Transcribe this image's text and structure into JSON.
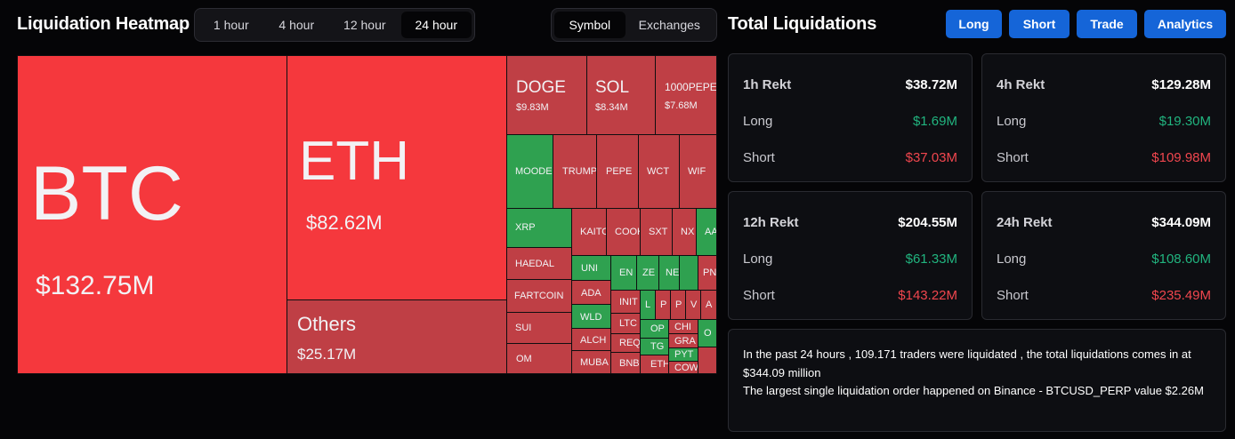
{
  "header": {
    "title": "Liquidation Heatmap",
    "time_tabs": [
      "1 hour",
      "4 hour",
      "12 hour",
      "24 hour"
    ],
    "active_time_tab": "24 hour",
    "view_tabs": [
      "Symbol",
      "Exchanges"
    ],
    "active_view_tab": "Symbol"
  },
  "right_header": {
    "title": "Total Liquidations",
    "buttons": [
      "Long",
      "Short",
      "Trade",
      "Analytics"
    ]
  },
  "heatmap": {
    "btc": {
      "symbol": "BTC",
      "value": "$132.75M"
    },
    "eth": {
      "symbol": "ETH",
      "value": "$82.62M"
    },
    "others": {
      "symbol": "Others",
      "value": "$25.17M"
    },
    "doge": {
      "symbol": "DOGE",
      "value": "$9.83M"
    },
    "sol": {
      "symbol": "SOL",
      "value": "$8.34M"
    },
    "pepe1000": {
      "symbol": "1000PEPE",
      "value": "$7.68M"
    },
    "small": [
      "MOODE",
      "TRUMP",
      "PEPE",
      "WCT",
      "WIF",
      "XRP",
      "KAITO",
      "COOK",
      "SXT",
      "NX",
      "AA",
      "HAEDAL",
      "UNI",
      "EN",
      "ZE",
      "NE",
      "PN",
      "FARTCOIN",
      "ADA",
      "INIT",
      "L",
      "P",
      "P",
      "V",
      "A",
      "SUI",
      "WLD",
      "LTC",
      "OP",
      "CHI",
      "O",
      "ALCH",
      "REQ",
      "TG",
      "GRA",
      "OM",
      "MUBA",
      "BNB",
      "ETH",
      "PYT",
      "COW"
    ]
  },
  "stats": {
    "h1": {
      "label": "1h Rekt",
      "total": "$38.72M",
      "long": "$1.69M",
      "short": "$37.03M"
    },
    "h4": {
      "label": "4h Rekt",
      "total": "$129.28M",
      "long": "$19.30M",
      "short": "$109.98M"
    },
    "h12": {
      "label": "12h Rekt",
      "total": "$204.55M",
      "long": "$61.33M",
      "short": "$143.22M"
    },
    "h24": {
      "label": "24h Rekt",
      "total": "$344.09M",
      "long": "$108.60M",
      "short": "$235.49M"
    },
    "long_label": "Long",
    "short_label": "Short"
  },
  "summary": {
    "line1": "In the past 24 hours , 109.171 traders were liquidated , the total liquidations comes in at $344.09 million",
    "line2": "The largest single liquidation order happened on Binance - BTCUSD_PERP value $2.26M"
  },
  "colors": {
    "long": "#21b47f",
    "short": "#f0464e",
    "accent": "#1565d8",
    "tile_red": "#f5383d",
    "tile_dark_red": "#bf3f45",
    "tile_green": "#2fa150"
  }
}
